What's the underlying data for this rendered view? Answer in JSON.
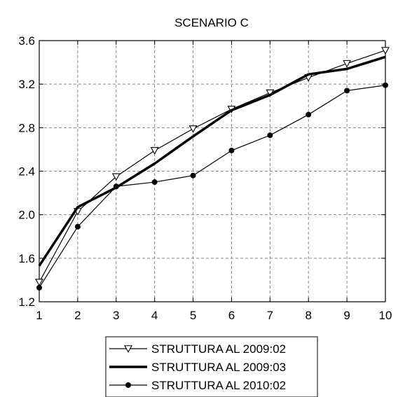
{
  "chart_data": {
    "type": "line",
    "title": "SCENARIO C",
    "xlabel": "",
    "ylabel": "",
    "x": [
      1,
      2,
      3,
      4,
      5,
      6,
      7,
      8,
      9,
      10
    ],
    "xlim": [
      1,
      10
    ],
    "ylim": [
      1.2,
      3.6
    ],
    "yticks": [
      "1.2",
      "1.6",
      "2.0",
      "2.4",
      "2.8",
      "3.2",
      "3.6"
    ],
    "xticks": [
      "1",
      "2",
      "3",
      "4",
      "5",
      "6",
      "7",
      "8",
      "9",
      "10"
    ],
    "grid": true,
    "legend_position": "bottom",
    "series": [
      {
        "name": "STRUTTURA AL 2009:02",
        "marker": "triangle-down-open",
        "line": "thin",
        "color": "#000000",
        "values": [
          1.38,
          2.03,
          2.35,
          2.59,
          2.79,
          2.97,
          3.12,
          3.26,
          3.39,
          3.51
        ]
      },
      {
        "name": "STRUTTURA AL 2009:03",
        "marker": "none",
        "line": "thick",
        "color": "#000000",
        "values": [
          1.53,
          2.07,
          2.25,
          2.47,
          2.72,
          2.96,
          3.1,
          3.29,
          3.34,
          3.45
        ]
      },
      {
        "name": "STRUTTURA AL 2010:02",
        "marker": "circle-filled",
        "line": "thin",
        "color": "#000000",
        "values": [
          1.33,
          1.89,
          2.26,
          2.3,
          2.36,
          2.59,
          2.73,
          2.92,
          3.14,
          3.19
        ]
      }
    ]
  }
}
